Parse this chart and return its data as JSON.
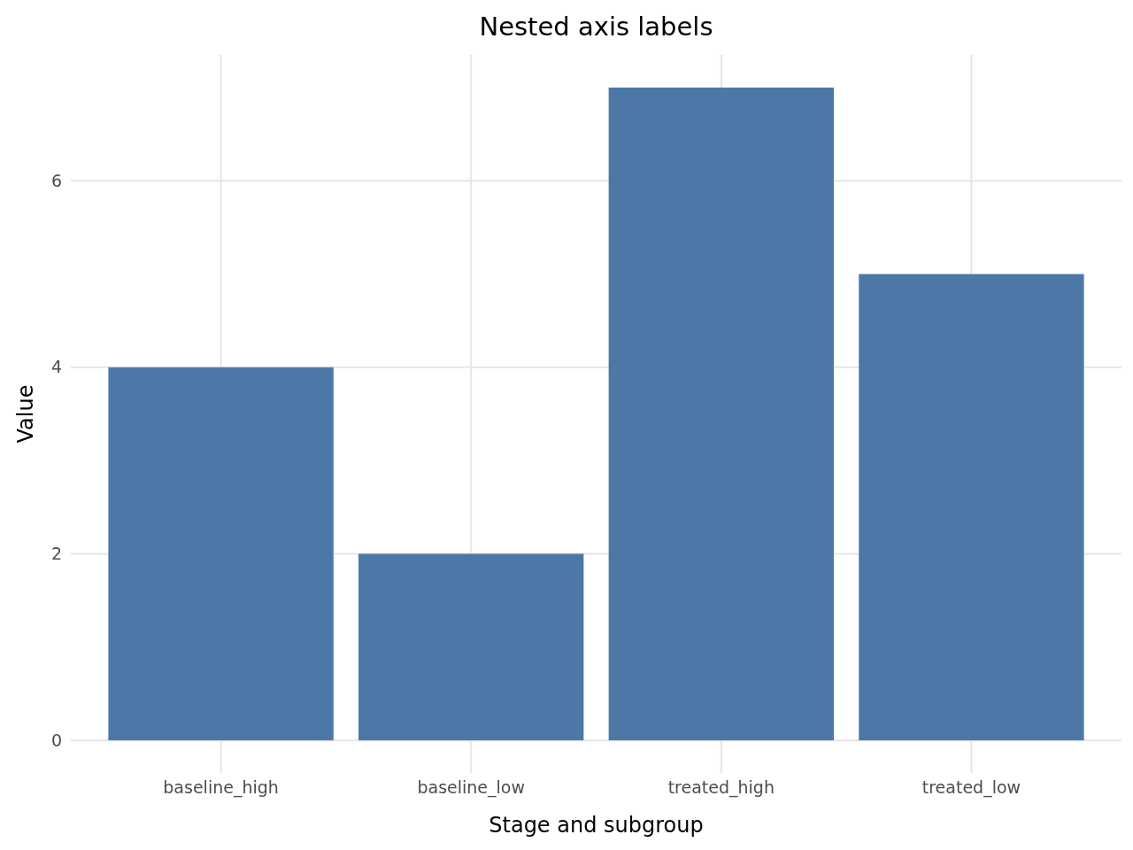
{
  "chart_data": {
    "type": "bar",
    "title": "Nested axis labels",
    "xlabel": "Stage and subgroup",
    "ylabel": "Value",
    "categories": [
      "baseline_high",
      "baseline_low",
      "treated_high",
      "treated_low"
    ],
    "values": [
      4,
      2,
      7,
      5
    ],
    "color": "#4c78a8",
    "ylim": [
      -0.35,
      7.35
    ],
    "yticks": [
      0,
      2,
      4,
      6
    ],
    "grid": true
  }
}
